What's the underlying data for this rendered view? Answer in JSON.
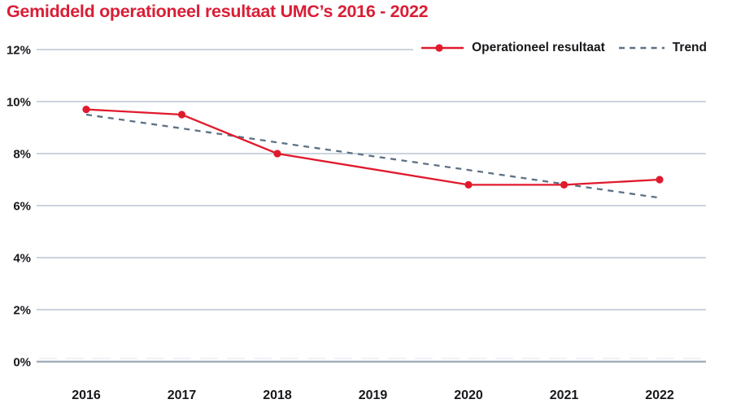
{
  "header": {
    "title": "Gemiddeld operationeel resultaat UMC’s 2016 - 2022",
    "title_color": "#d91e36"
  },
  "legend": {
    "items": [
      {
        "label": "Operationeel resultaat",
        "marker": "solid-line-with-dot",
        "color": "#e01a2d"
      },
      {
        "label": "Trend",
        "marker": "dashed-line",
        "color": "#5c7185"
      }
    ]
  },
  "chart_data": {
    "type": "line",
    "title": "Gemiddeld operationeel resultaat UMC's 2016 - 2022",
    "categories": [
      "2016",
      "2017",
      "2018",
      "2019",
      "2020",
      "2021",
      "2022"
    ],
    "series": [
      {
        "name": "Operationeel resultaat",
        "color": "#e01a2d",
        "line_style": "solid",
        "markers": true,
        "values": [
          9.7,
          9.5,
          8.0,
          null,
          6.8,
          6.8,
          7.0
        ]
      },
      {
        "name": "Trend",
        "color": "#5c7185",
        "line_style": "dashed",
        "markers": false,
        "values": [
          9.5,
          8.97,
          8.43,
          7.9,
          7.37,
          6.83,
          6.3
        ]
      }
    ],
    "xlabel": "",
    "ylabel": "",
    "ylim": [
      0,
      12
    ],
    "yticks": [
      0,
      2,
      4,
      6,
      8,
      10,
      12
    ],
    "ytick_labels": [
      "0%",
      "2%",
      "4%",
      "6%",
      "8%",
      "10%",
      "12%"
    ],
    "grid": "horizontal",
    "legend_position": "top-right",
    "gridline_color": "#cbd4de",
    "axis_line_color": "#a4afbb",
    "tick_label_color": "#16181b"
  }
}
